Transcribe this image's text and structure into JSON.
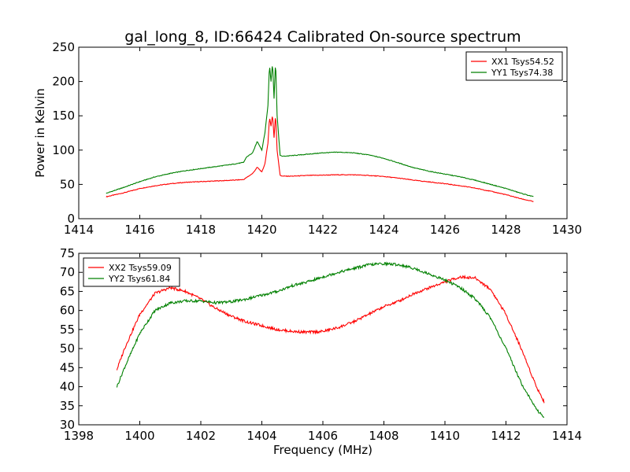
{
  "figure": {
    "title": "gal_long_8, ID:66424 Calibrated On-source spectrum"
  },
  "colors": {
    "series_1": "#ff0000",
    "series_2": "#008000"
  },
  "chart_data": [
    {
      "type": "line",
      "title": "gal_long_8, ID:66424 Calibrated On-source spectrum",
      "xlabel": "",
      "ylabel": "Power in Kelvin",
      "xlim": [
        1414,
        1430
      ],
      "ylim": [
        0,
        250
      ],
      "xticks": [
        1414,
        1416,
        1418,
        1420,
        1422,
        1424,
        1426,
        1428,
        1430
      ],
      "yticks": [
        0,
        50,
        100,
        150,
        200,
        250
      ],
      "legend_position": "top-right",
      "series": [
        {
          "name": "XX1 Tsys54.52",
          "color": "#ff0000",
          "x": [
            1414.9,
            1415.5,
            1416.0,
            1416.5,
            1417.0,
            1417.5,
            1418.0,
            1418.5,
            1419.0,
            1419.4,
            1419.5,
            1419.7,
            1419.85,
            1420.0,
            1420.1,
            1420.2,
            1420.25,
            1420.3,
            1420.35,
            1420.4,
            1420.45,
            1420.5,
            1420.6,
            1420.7,
            1421.0,
            1421.5,
            1422.0,
            1422.5,
            1423.0,
            1423.5,
            1424.0,
            1424.5,
            1425.0,
            1425.5,
            1426.0,
            1426.5,
            1427.0,
            1427.5,
            1428.0,
            1428.5,
            1428.9
          ],
          "y": [
            32,
            38,
            44,
            48,
            51,
            53,
            54,
            55,
            56,
            57,
            60,
            66,
            75,
            68,
            80,
            110,
            148,
            135,
            152,
            118,
            153,
            100,
            63,
            62,
            62,
            63,
            63.5,
            64,
            64,
            63,
            61.5,
            59,
            56,
            53.5,
            51,
            48,
            44.5,
            40,
            35,
            29,
            25
          ]
        },
        {
          "name": "YY1 Tsys74.38",
          "color": "#008000",
          "x": [
            1414.9,
            1415.5,
            1416.0,
            1416.5,
            1417.0,
            1417.5,
            1418.0,
            1418.5,
            1419.0,
            1419.4,
            1419.5,
            1419.7,
            1419.85,
            1420.0,
            1420.1,
            1420.2,
            1420.25,
            1420.3,
            1420.35,
            1420.4,
            1420.45,
            1420.5,
            1420.6,
            1420.7,
            1421.0,
            1421.5,
            1422.0,
            1422.5,
            1423.0,
            1423.5,
            1424.0,
            1424.5,
            1425.0,
            1425.5,
            1426.0,
            1426.5,
            1427.0,
            1427.5,
            1428.0,
            1428.5,
            1428.9
          ],
          "y": [
            37,
            46,
            54,
            61,
            66,
            70,
            73,
            76,
            79,
            82,
            90,
            96,
            113,
            100,
            125,
            165,
            225,
            200,
            228,
            175,
            232,
            150,
            92,
            91,
            92,
            94,
            96,
            97,
            96,
            93,
            88,
            81,
            74,
            69,
            65,
            61,
            56,
            50,
            44,
            37,
            32
          ]
        }
      ]
    },
    {
      "type": "line",
      "title": "",
      "xlabel": "Frequency (MHz)",
      "ylabel": "",
      "xlim": [
        1398,
        1414
      ],
      "ylim": [
        30,
        75
      ],
      "xticks": [
        1398,
        1400,
        1402,
        1404,
        1406,
        1408,
        1410,
        1412,
        1414
      ],
      "yticks": [
        30,
        35,
        40,
        45,
        50,
        55,
        60,
        65,
        70,
        75
      ],
      "legend_position": "top-left",
      "series": [
        {
          "name": "XX2 Tsys59.09",
          "color": "#ff0000",
          "x": [
            1399.25,
            1399.5,
            1400.0,
            1400.5,
            1401.0,
            1401.5,
            1402.0,
            1402.5,
            1403.0,
            1403.5,
            1404.0,
            1404.5,
            1405.0,
            1405.5,
            1406.0,
            1406.5,
            1407.0,
            1407.5,
            1408.0,
            1408.5,
            1409.0,
            1409.5,
            1410.0,
            1410.5,
            1411.0,
            1411.5,
            1412.0,
            1412.5,
            1413.0,
            1413.25
          ],
          "y": [
            44.5,
            50,
            59,
            64.5,
            66,
            65,
            63,
            60.5,
            58.5,
            57,
            56,
            55,
            54.5,
            54.3,
            54.5,
            55.5,
            57,
            59,
            61,
            62.5,
            64.5,
            66,
            67.5,
            68.8,
            68.5,
            65.5,
            59,
            50,
            40,
            36
          ]
        },
        {
          "name": "YY2 Tsys61.84",
          "color": "#008000",
          "x": [
            1399.25,
            1399.5,
            1400.0,
            1400.5,
            1401.0,
            1401.5,
            1402.0,
            1402.5,
            1403.0,
            1403.5,
            1404.0,
            1404.5,
            1405.0,
            1405.5,
            1406.0,
            1406.5,
            1407.0,
            1407.5,
            1408.0,
            1408.5,
            1409.0,
            1409.5,
            1410.0,
            1410.5,
            1411.0,
            1411.5,
            1412.0,
            1412.5,
            1413.0,
            1413.25
          ],
          "y": [
            40,
            45,
            54,
            60,
            62,
            62.5,
            62.5,
            62,
            62.3,
            63,
            64,
            65,
            66.5,
            67.5,
            68.8,
            70,
            71,
            72,
            72.3,
            72,
            71,
            69.5,
            68,
            66,
            63,
            58,
            50,
            41,
            34,
            32
          ]
        }
      ]
    }
  ]
}
